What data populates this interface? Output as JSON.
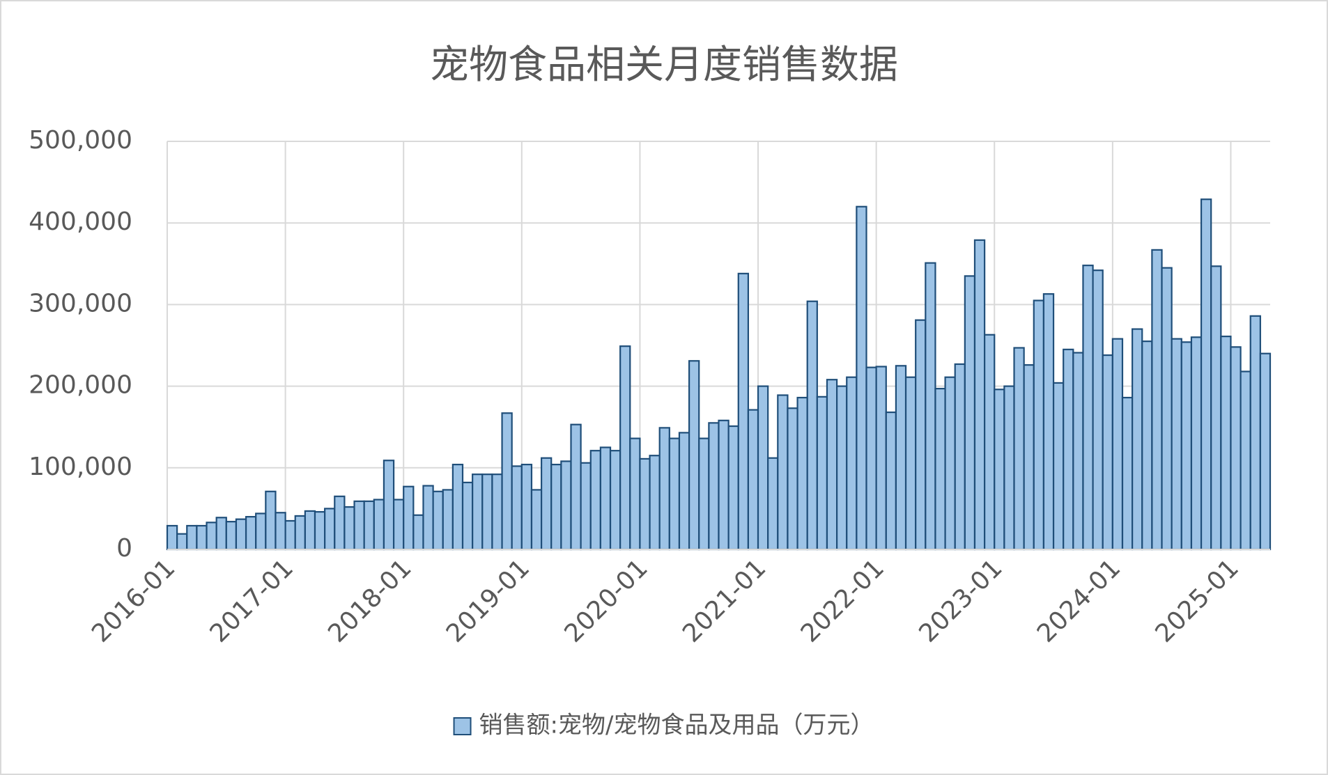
{
  "chart_data": {
    "type": "bar",
    "title": "宠物食品相关月度销售数据",
    "categories": [
      "2016-01",
      null,
      null,
      null,
      null,
      null,
      null,
      null,
      null,
      null,
      null,
      null,
      "2017-01",
      null,
      null,
      null,
      null,
      null,
      null,
      null,
      null,
      null,
      null,
      null,
      "2018-01",
      null,
      null,
      null,
      null,
      null,
      null,
      null,
      null,
      null,
      null,
      null,
      "2019-01",
      null,
      null,
      null,
      null,
      null,
      null,
      null,
      null,
      null,
      null,
      null,
      "2020-01",
      null,
      null,
      null,
      null,
      null,
      null,
      null,
      null,
      null,
      null,
      null,
      "2021-01",
      null,
      null,
      null,
      null,
      null,
      null,
      null,
      null,
      null,
      null,
      null,
      "2022-01",
      null,
      null,
      null,
      null,
      null,
      null,
      null,
      null,
      null,
      null,
      null,
      "2023-01",
      null,
      null,
      null,
      null,
      null,
      null,
      null,
      null,
      null,
      null,
      null,
      "2024-01",
      null,
      null,
      null,
      null,
      null,
      null,
      null,
      null,
      null,
      null,
      null,
      "2025-01",
      null,
      null,
      null
    ],
    "series": [
      {
        "name": "销售额:宠物/宠物食品及用品（万元）",
        "color": "#9dc3e6",
        "edge": "#1f4e79",
        "values": [
          29000,
          19000,
          29000,
          29000,
          33000,
          39000,
          34000,
          37000,
          40000,
          44000,
          71000,
          45000,
          35000,
          41000,
          47000,
          46000,
          50000,
          65000,
          52000,
          59000,
          59000,
          61000,
          109000,
          61000,
          77000,
          42000,
          78000,
          71000,
          73000,
          104000,
          82000,
          92000,
          92000,
          92000,
          167000,
          102000,
          104000,
          73000,
          112000,
          104000,
          108000,
          153000,
          106000,
          121000,
          125000,
          121000,
          249000,
          136000,
          111000,
          115000,
          149000,
          136000,
          143000,
          231000,
          136000,
          155000,
          158000,
          151000,
          338000,
          171000,
          200000,
          112000,
          189000,
          173000,
          186000,
          304000,
          187000,
          208000,
          200000,
          211000,
          420000,
          223000,
          224000,
          168000,
          225000,
          211000,
          281000,
          351000,
          197000,
          211000,
          227000,
          335000,
          379000,
          263000,
          196000,
          200000,
          247000,
          226000,
          305000,
          313000,
          204000,
          245000,
          241000,
          348000,
          342000,
          238000,
          258000,
          186000,
          270000,
          255000,
          367000,
          345000,
          258000,
          254000,
          260000,
          429000,
          347000,
          261000,
          248000,
          218000,
          286000,
          240000
        ]
      }
    ],
    "ylim": [
      0,
      500000
    ],
    "yticks": [
      0,
      {
        "value": 100000,
        "label": "100,000"
      },
      {
        "value": 200000,
        "label": "200,000"
      },
      {
        "value": 300000,
        "label": "300,000"
      },
      {
        "value": 400000,
        "label": "400,000"
      },
      {
        "value": 500000,
        "label": "500,000"
      }
    ],
    "grid": true,
    "legend": "bottom"
  }
}
